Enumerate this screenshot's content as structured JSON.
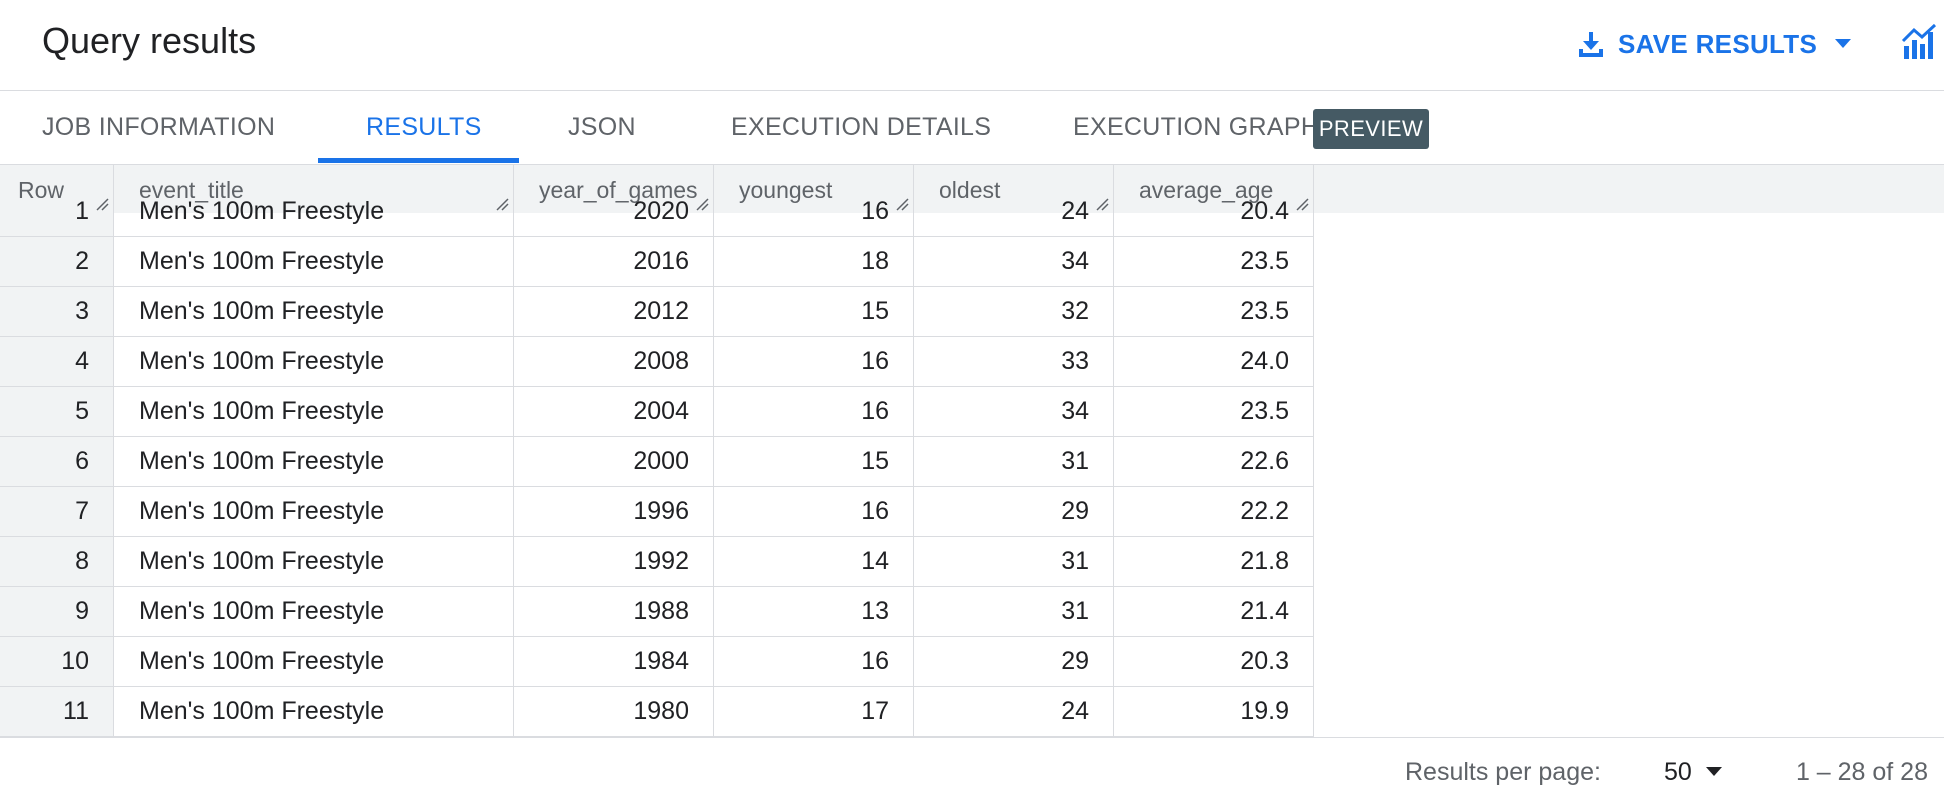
{
  "header": {
    "title": "Query results",
    "save_label": "SAVE RESULTS"
  },
  "icons": {
    "save": "download-icon",
    "chart": "explore-chart-icon",
    "caret": "dropdown-caret-icon",
    "resize": "column-resize-icon"
  },
  "colors": {
    "accent": "#1a73e8",
    "badge_bg": "#455a64",
    "header_bg": "#f1f3f4",
    "border": "#dadce0"
  },
  "tabs": [
    {
      "label": "JOB INFORMATION",
      "active": false
    },
    {
      "label": "RESULTS",
      "active": true
    },
    {
      "label": "JSON",
      "active": false
    },
    {
      "label": "EXECUTION DETAILS",
      "active": false
    },
    {
      "label": "EXECUTION GRAPH",
      "active": false
    }
  ],
  "preview_badge": "PREVIEW",
  "table": {
    "columns": [
      "Row",
      "event_title",
      "year_of_games",
      "youngest",
      "oldest",
      "average_age"
    ],
    "rows": [
      [
        "1",
        "Men's 100m Freestyle",
        "2020",
        "16",
        "24",
        "20.4"
      ],
      [
        "2",
        "Men's 100m Freestyle",
        "2016",
        "18",
        "34",
        "23.5"
      ],
      [
        "3",
        "Men's 100m Freestyle",
        "2012",
        "15",
        "32",
        "23.5"
      ],
      [
        "4",
        "Men's 100m Freestyle",
        "2008",
        "16",
        "33",
        "24.0"
      ],
      [
        "5",
        "Men's 100m Freestyle",
        "2004",
        "16",
        "34",
        "23.5"
      ],
      [
        "6",
        "Men's 100m Freestyle",
        "2000",
        "15",
        "31",
        "22.6"
      ],
      [
        "7",
        "Men's 100m Freestyle",
        "1996",
        "16",
        "29",
        "22.2"
      ],
      [
        "8",
        "Men's 100m Freestyle",
        "1992",
        "14",
        "31",
        "21.8"
      ],
      [
        "9",
        "Men's 100m Freestyle",
        "1988",
        "13",
        "31",
        "21.4"
      ],
      [
        "10",
        "Men's 100m Freestyle",
        "1984",
        "16",
        "29",
        "20.3"
      ],
      [
        "11",
        "Men's 100m Freestyle",
        "1980",
        "17",
        "24",
        "19.9"
      ]
    ]
  },
  "footer": {
    "per_page_label": "Results per page:",
    "per_page_value": "50",
    "range": "1 – 28 of 28"
  }
}
